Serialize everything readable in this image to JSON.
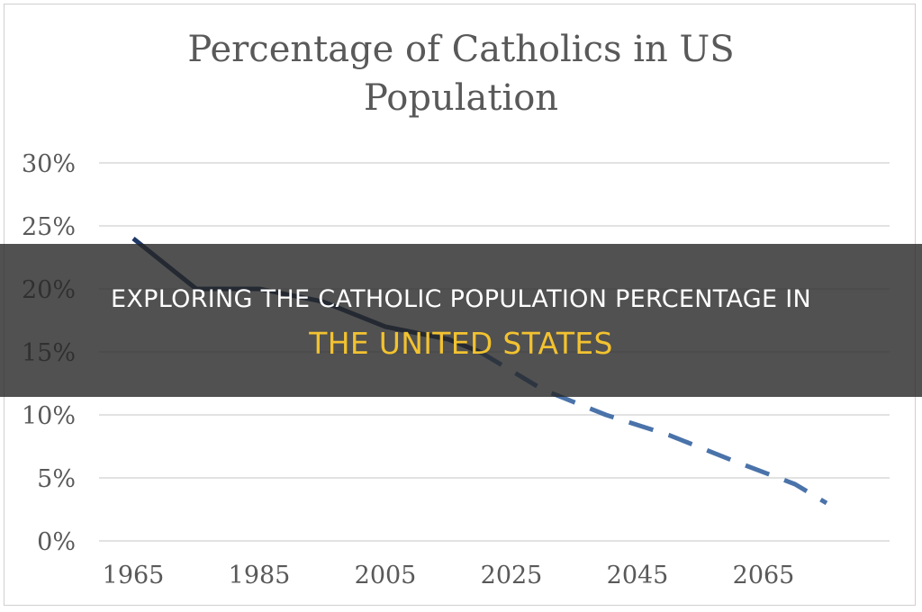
{
  "headline": {
    "line1": "EXPLORING THE CATHOLIC POPULATION PERCENTAGE IN",
    "line2": "THE UNITED STATES",
    "line1_color": "#ffffff",
    "line2_color": "#f2c230",
    "banner_color": "#262626"
  },
  "chart_data": {
    "type": "line",
    "title_lines": [
      "Percentage of Catholics in US",
      "Population"
    ],
    "x_ticks": [
      "1965",
      "1985",
      "2005",
      "2025",
      "2045",
      "2065"
    ],
    "y_ticks": [
      "0%",
      "5%",
      "10%",
      "15%",
      "20%",
      "25%",
      "30%"
    ],
    "ylim": [
      0,
      30
    ],
    "xlim": [
      1965,
      2080
    ],
    "grid": true,
    "legend": "none",
    "series": [
      {
        "style": "solid",
        "color": "#1f3864",
        "x": [
          1965,
          1975,
          1985,
          1995,
          2005,
          2015,
          2020
        ],
        "values": [
          24,
          20,
          20,
          19,
          17,
          16,
          15
        ]
      },
      {
        "style": "dashed",
        "color": "#4a73aa",
        "x": [
          2020,
          2030,
          2040,
          2050,
          2060,
          2070,
          2075
        ],
        "values": [
          15,
          12,
          10,
          8.4,
          6.4,
          4.5,
          3
        ]
      }
    ]
  }
}
